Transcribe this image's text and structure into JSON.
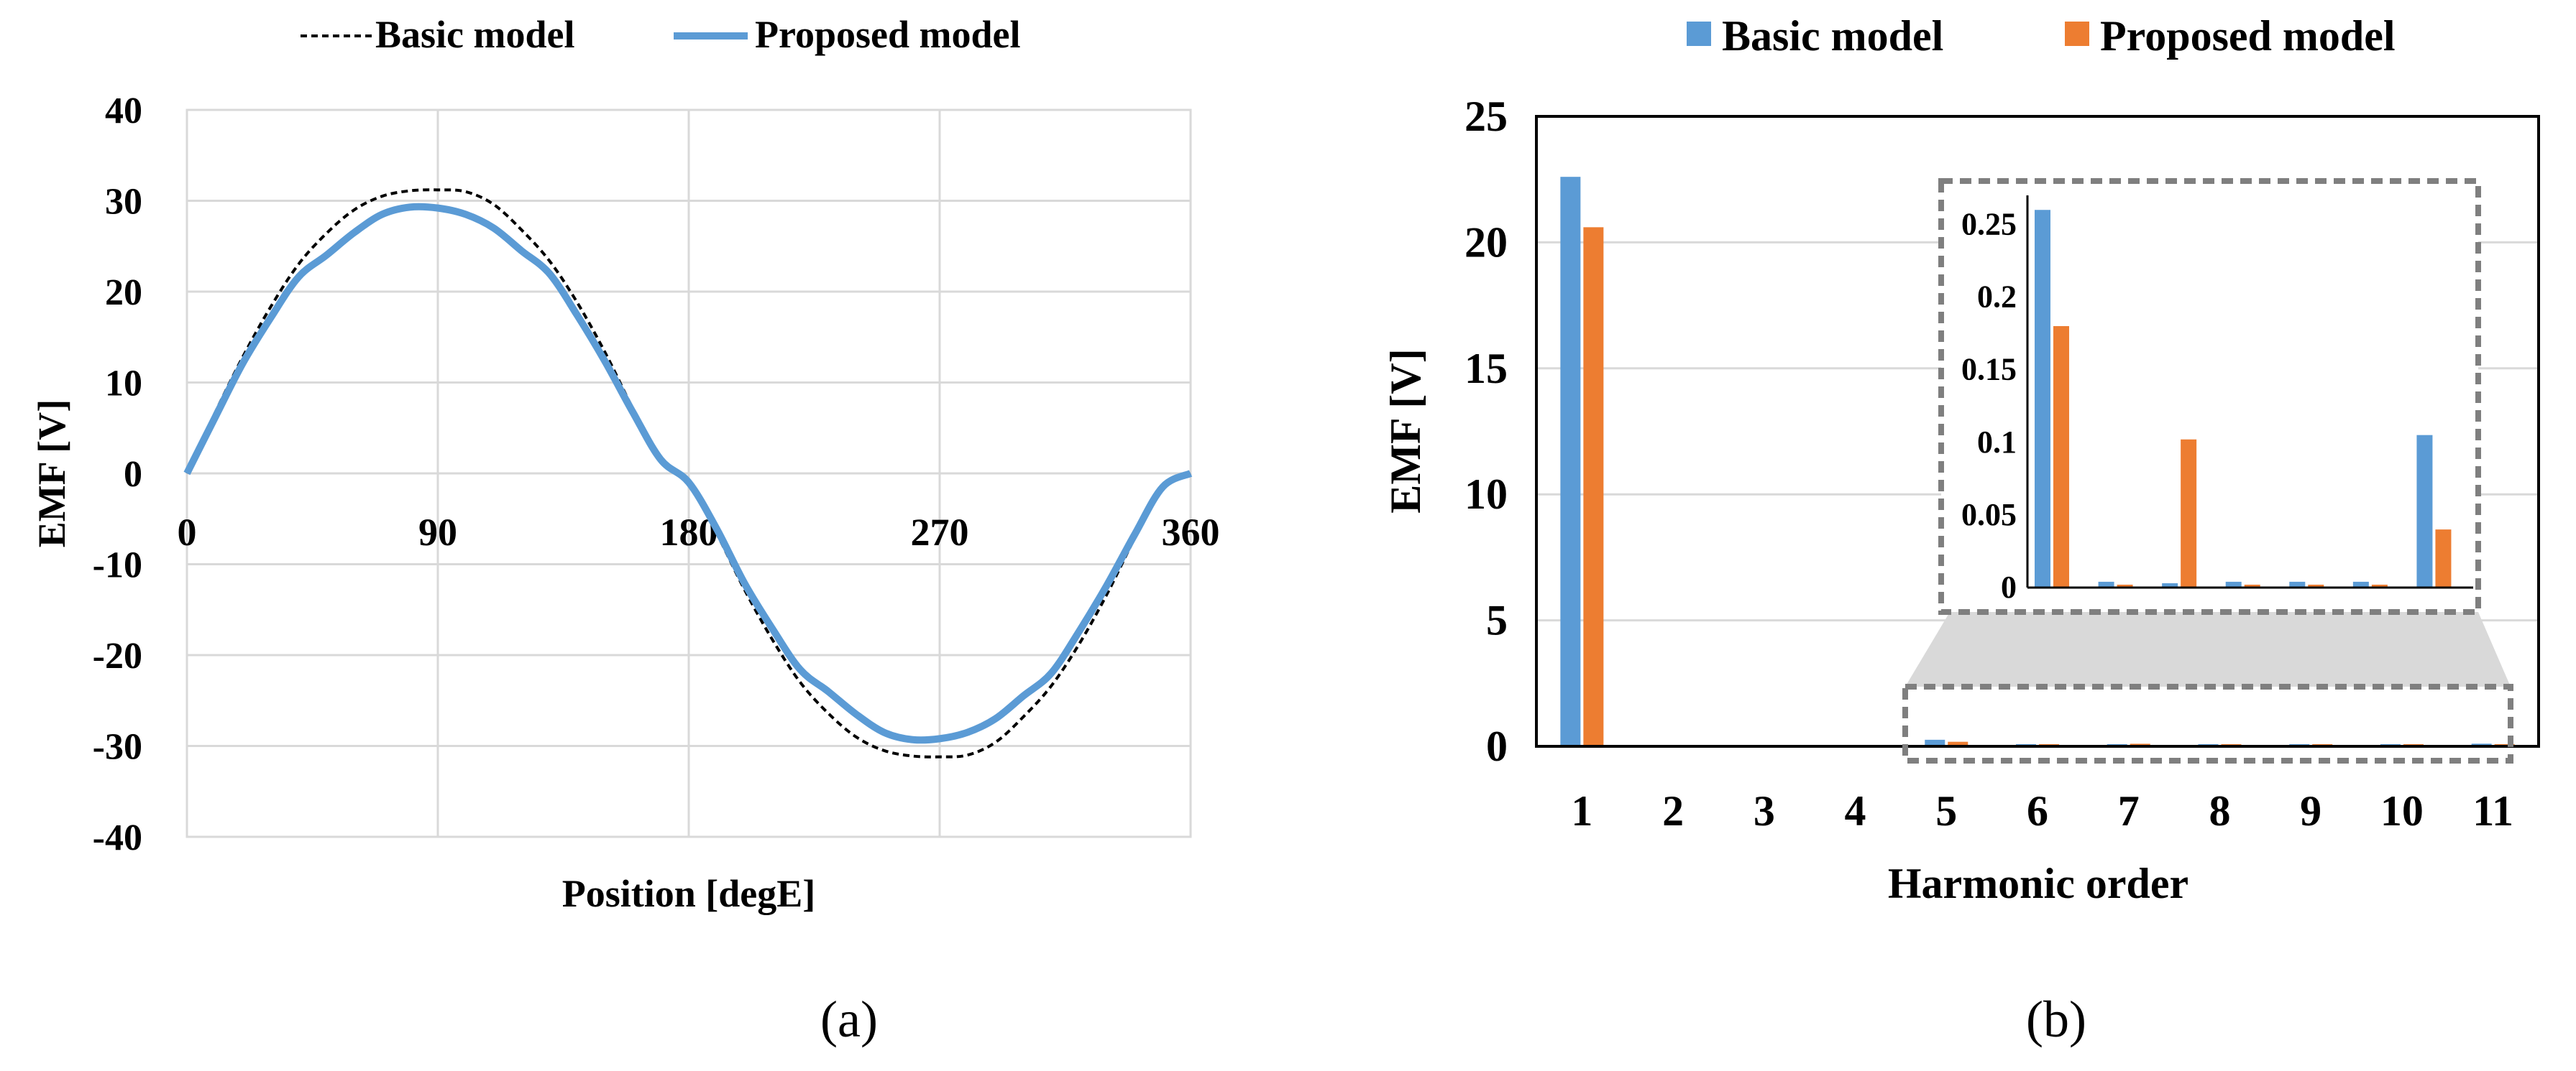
{
  "panel_labels": {
    "a": "(a)",
    "b": "(b)"
  },
  "colors": {
    "basic_dash": "#000000",
    "proposed_line": "#5b9bd5",
    "blue_bar": "#5b9bd5",
    "orange_bar": "#ed7d31",
    "grid": "#d9d9d9",
    "zoom_box": "#7f7f7f",
    "zoom_fan": "#d9d9d9"
  },
  "chart_data": [
    {
      "type": "line",
      "title": "",
      "xlabel": "Position [degE]",
      "ylabel": "EMF [V]",
      "xlim": [
        0,
        360
      ],
      "ylim": [
        -40,
        40
      ],
      "xticks": [
        "0",
        "90",
        "180",
        "270",
        "360"
      ],
      "yticks": [
        "40",
        "30",
        "20",
        "10",
        "0",
        "-10",
        "-20",
        "-30",
        "-40"
      ],
      "grid": true,
      "legend": "top",
      "series": [
        {
          "name": "Basic model",
          "style": "dashed",
          "x": [
            0,
            10,
            20,
            30,
            40,
            50,
            60,
            70,
            80,
            90,
            100,
            110,
            120,
            130,
            140,
            150,
            160,
            170,
            180,
            190,
            200,
            210,
            220,
            230,
            240,
            250,
            260,
            270,
            280,
            290,
            300,
            310,
            320,
            330,
            340,
            350,
            360
          ],
          "y": [
            0,
            6.6,
            12.8,
            18.3,
            23.0,
            26.4,
            29.0,
            30.5,
            31.1,
            31.2,
            31.0,
            29.6,
            26.8,
            23.4,
            18.8,
            13.3,
            7.1,
            1.5,
            -1.0,
            -6.6,
            -12.8,
            -18.3,
            -23.0,
            -26.4,
            -29.0,
            -30.5,
            -31.1,
            -31.2,
            -31.0,
            -29.6,
            -26.8,
            -23.4,
            -18.8,
            -13.3,
            -7.1,
            -1.5,
            0
          ]
        },
        {
          "name": "Proposed model",
          "style": "solid",
          "x": [
            0,
            10,
            20,
            30,
            40,
            50,
            60,
            70,
            80,
            90,
            100,
            110,
            120,
            130,
            140,
            150,
            160,
            170,
            180,
            190,
            200,
            210,
            220,
            230,
            240,
            250,
            260,
            270,
            280,
            290,
            300,
            310,
            320,
            330,
            340,
            350,
            360
          ],
          "y": [
            0,
            6.1,
            12.1,
            17.1,
            21.6,
            24.0,
            26.5,
            28.5,
            29.3,
            29.2,
            28.5,
            27.0,
            24.5,
            22.0,
            17.4,
            12.3,
            6.7,
            1.5,
            -1.0,
            -6.1,
            -12.1,
            -17.1,
            -21.6,
            -24.0,
            -26.5,
            -28.5,
            -29.3,
            -29.2,
            -28.5,
            -27.0,
            -24.5,
            -22.0,
            -17.4,
            -12.3,
            -6.7,
            -1.5,
            0
          ]
        }
      ]
    },
    {
      "type": "bar",
      "title": "",
      "xlabel": "Harmonic order",
      "ylabel": "EMF [V]",
      "ylim": [
        0,
        25
      ],
      "yticks": [
        "0",
        "5",
        "10",
        "15",
        "20",
        "25"
      ],
      "grid": true,
      "legend": "top",
      "categories": [
        "1",
        "2",
        "3",
        "4",
        "5",
        "6",
        "7",
        "8",
        "9",
        "10",
        "11"
      ],
      "series": [
        {
          "name": "Basic model",
          "values": [
            22.6,
            0,
            0,
            0,
            0.26,
            0.004,
            0.003,
            0.004,
            0.004,
            0.004,
            0.105
          ]
        },
        {
          "name": "Proposed model",
          "values": [
            20.6,
            0,
            0,
            0,
            0.18,
            0.002,
            0.102,
            0.002,
            0.002,
            0.002,
            0.04
          ]
        }
      ],
      "inset": {
        "categories": [
          "5",
          "6",
          "7",
          "8",
          "9",
          "10",
          "11"
        ],
        "ylim": [
          0,
          0.27
        ],
        "yticks": [
          "0",
          "0.05",
          "0.1",
          "0.15",
          "0.2",
          "0.25"
        ]
      }
    }
  ]
}
